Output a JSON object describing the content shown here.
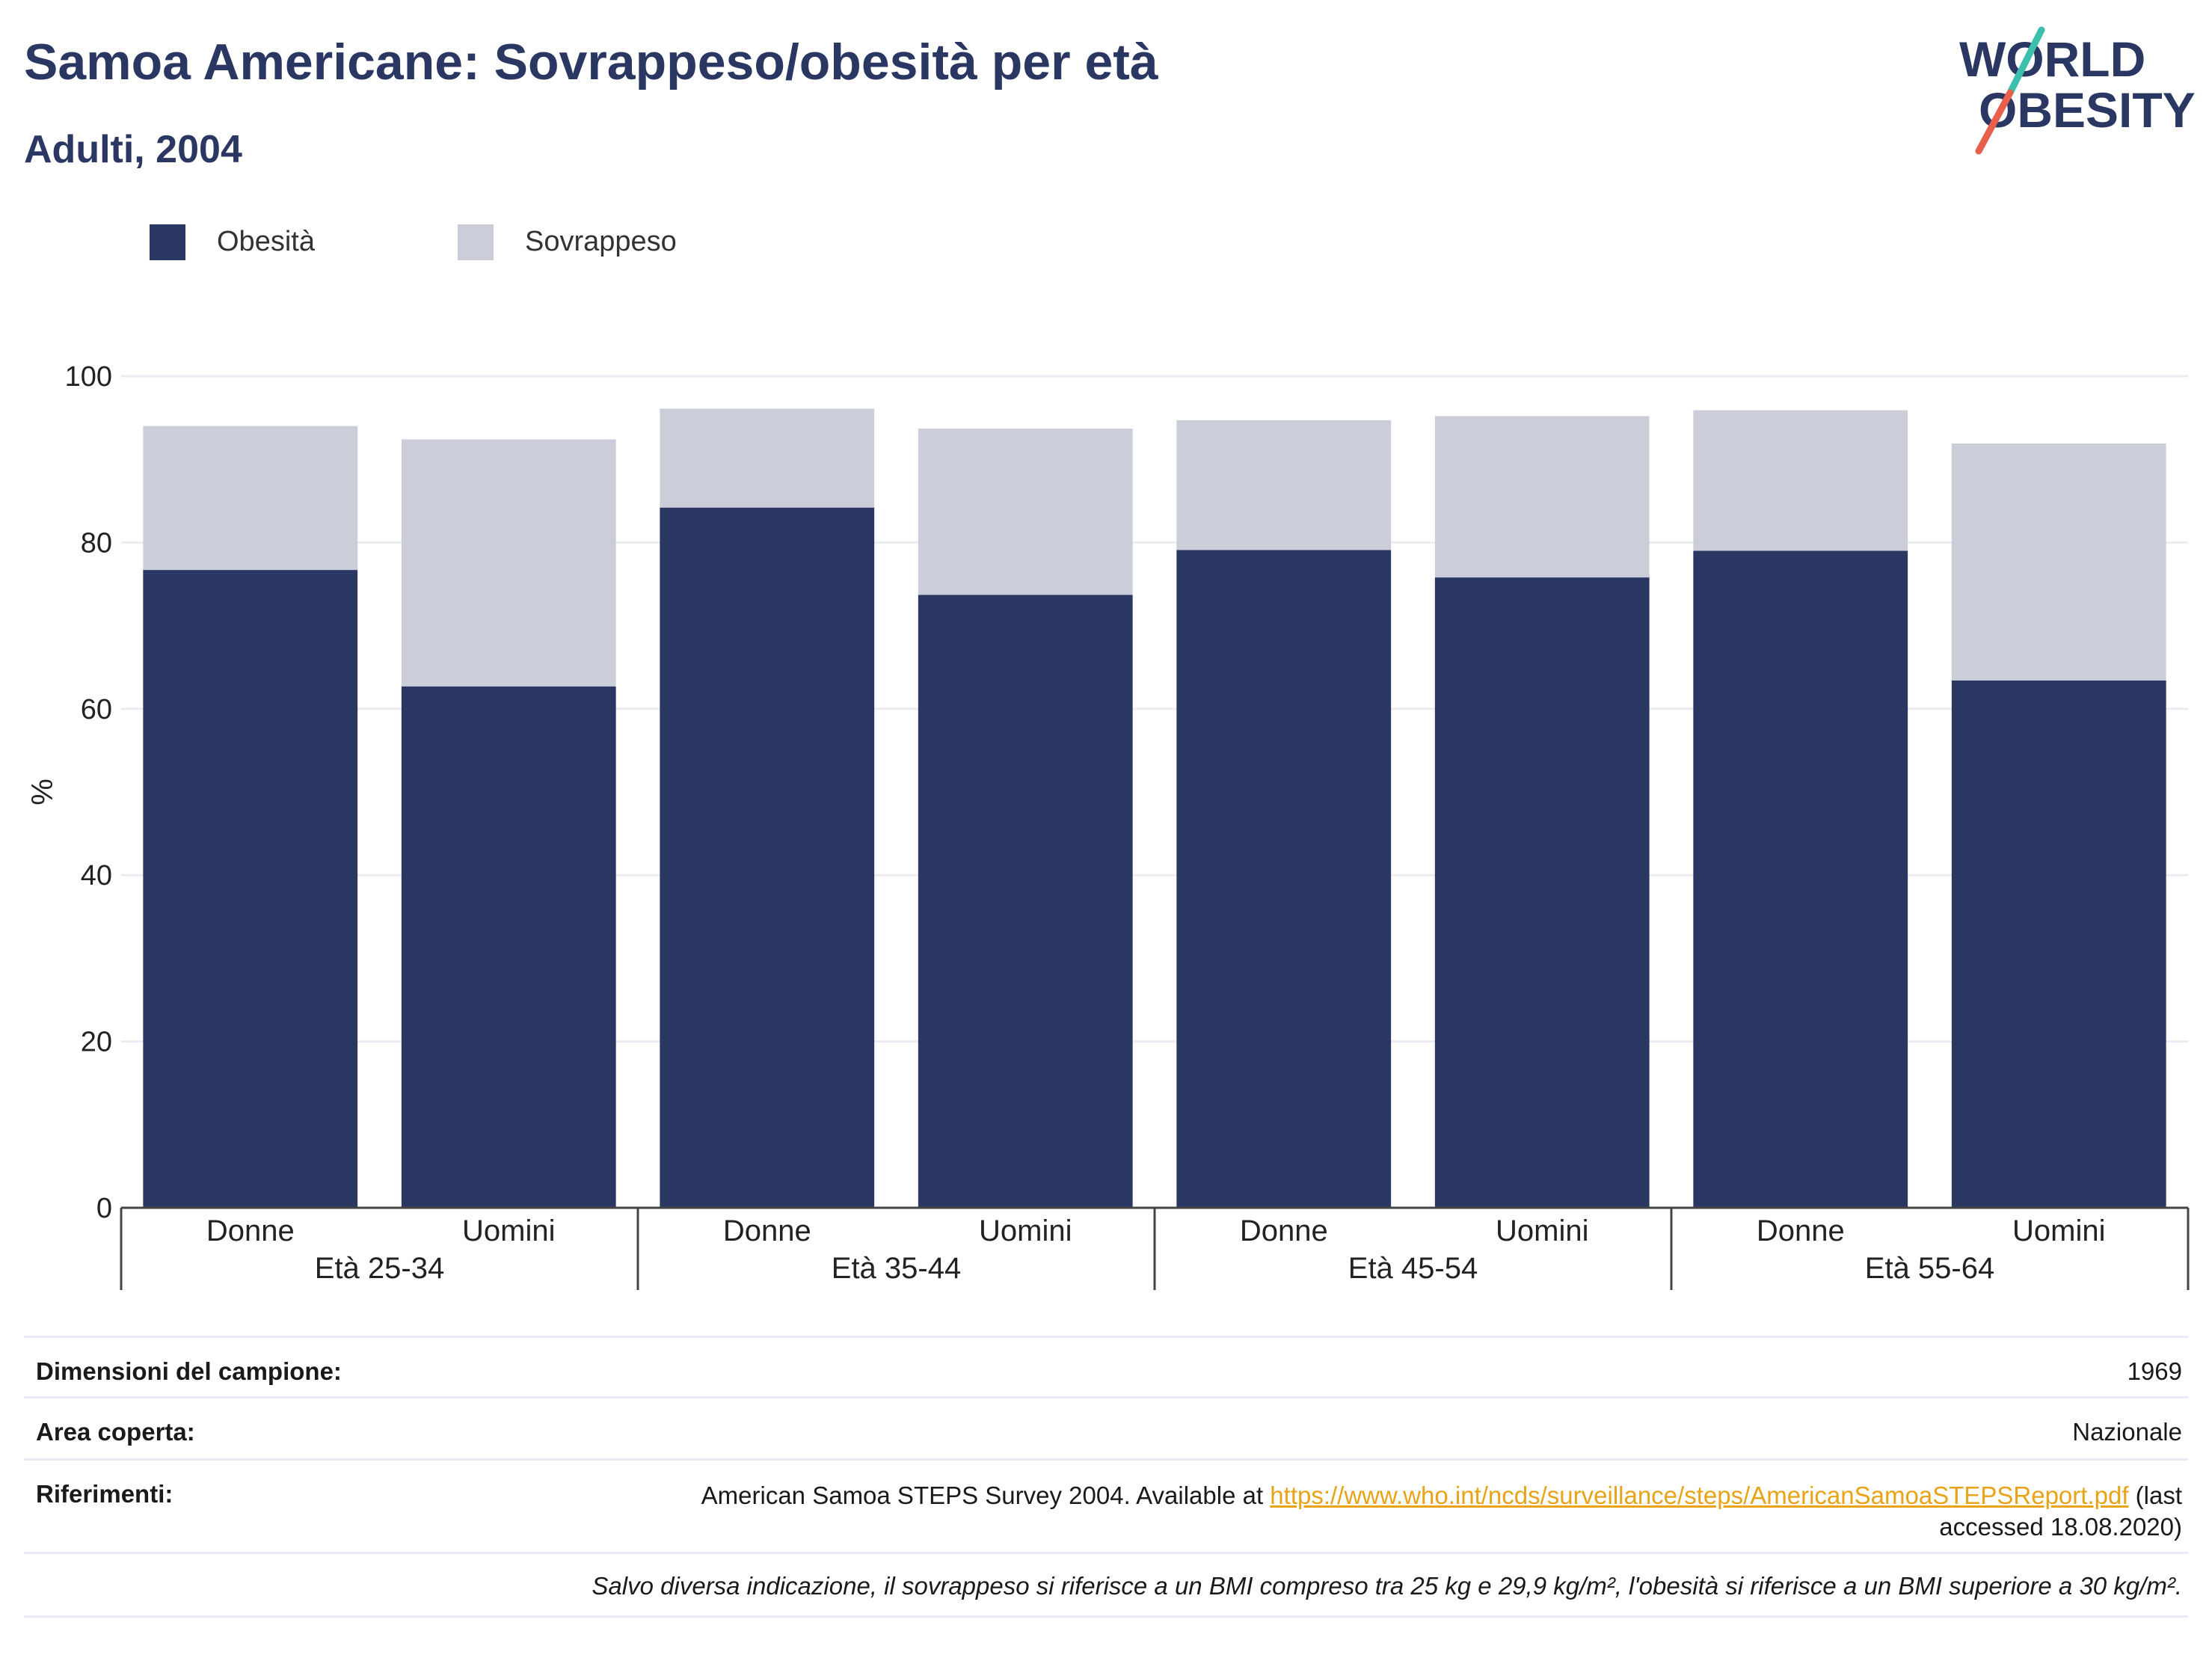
{
  "header": {
    "title": "Samoa Americane: Sovrappeso/obesità per età",
    "subtitle": "Adulti, 2004"
  },
  "logo": {
    "line1": "WORLD",
    "line2": "OBESITY",
    "colors": {
      "text": "#2b3763",
      "slash_top": "#3dbfae",
      "slash_bottom": "#e8604c"
    }
  },
  "colors": {
    "obesity": "#2b3763",
    "overweight": "#cbcdd9",
    "grid": "#ebedf2",
    "axis": "#444444",
    "link": "#e8a317"
  },
  "chart_data": {
    "type": "bar",
    "stacked": true,
    "ylabel": "%",
    "ylim": [
      0,
      100
    ],
    "yticks": [
      0,
      20,
      40,
      60,
      80,
      100
    ],
    "grid": true,
    "legend_position": "top-left",
    "groups": [
      "Età 25-34",
      "Età 35-44",
      "Età 45-54",
      "Età 55-64"
    ],
    "categories": [
      "Donne",
      "Uomini",
      "Donne",
      "Uomini",
      "Donne",
      "Uomini",
      "Donne",
      "Uomini"
    ],
    "series": [
      {
        "name": "Obesità",
        "values": [
          76.7,
          62.7,
          84.2,
          73.7,
          79.1,
          75.8,
          79.0,
          63.4
        ]
      },
      {
        "name": "Sovrappeso",
        "values": [
          17.3,
          29.7,
          11.9,
          20.0,
          15.6,
          19.4,
          16.9,
          28.5
        ]
      }
    ]
  },
  "info": {
    "sample_label": "Dimensioni del campione:",
    "sample_value": "1969",
    "area_label": "Area coperta:",
    "area_value": "Nazionale",
    "refs_label": "Riferimenti:",
    "refs_text": "American Samoa STEPS Survey 2004. Available at ",
    "refs_link": "https://www.who.int/ncds/surveillance/steps/AmericanSamoaSTEPSReport.pdf",
    "refs_after_link": " (last",
    "refs_line2": "accessed 18.08.2020)",
    "note": "Salvo diversa indicazione, il sovrappeso si riferisce a un BMI compreso tra 25 kg e 29,9 kg/m², l'obesità si riferisce a un BMI superiore a 30 kg/m²."
  }
}
